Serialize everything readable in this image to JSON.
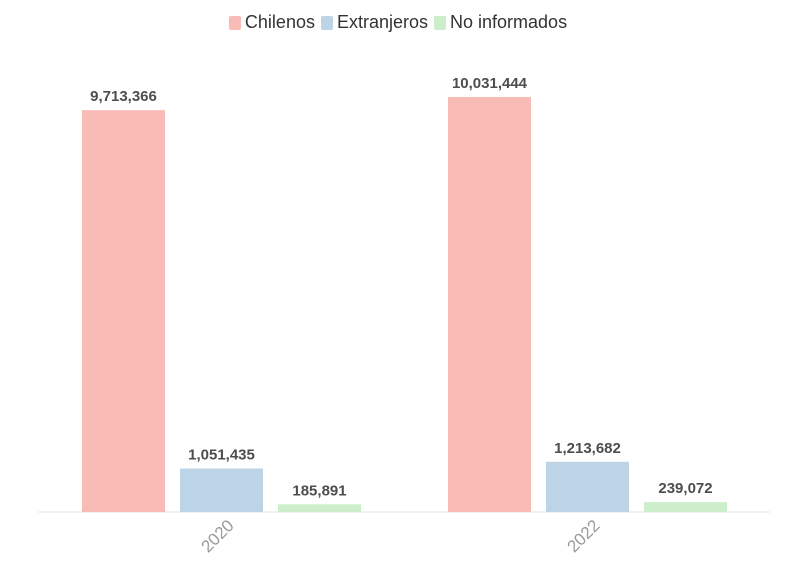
{
  "chart_data": {
    "type": "bar",
    "categories": [
      "2020",
      "2022"
    ],
    "series": [
      {
        "name": "Chilenos",
        "color": "#f9bbb6",
        "values": [
          9713366,
          10031444
        ],
        "labels": [
          "9,713,366",
          "10,031,444"
        ]
      },
      {
        "name": "Extranjeros",
        "color": "#bdd3e6",
        "values": [
          1051435,
          1213682
        ],
        "labels": [
          "1,051,435",
          "1,213,682"
        ]
      },
      {
        "name": "No informados",
        "color": "#cdeecb",
        "values": [
          185891,
          239072
        ],
        "labels": [
          "185,891",
          "239,072"
        ]
      }
    ],
    "ylim": [
      0,
      10031444
    ],
    "grid": false,
    "legend_position": "top-center"
  }
}
